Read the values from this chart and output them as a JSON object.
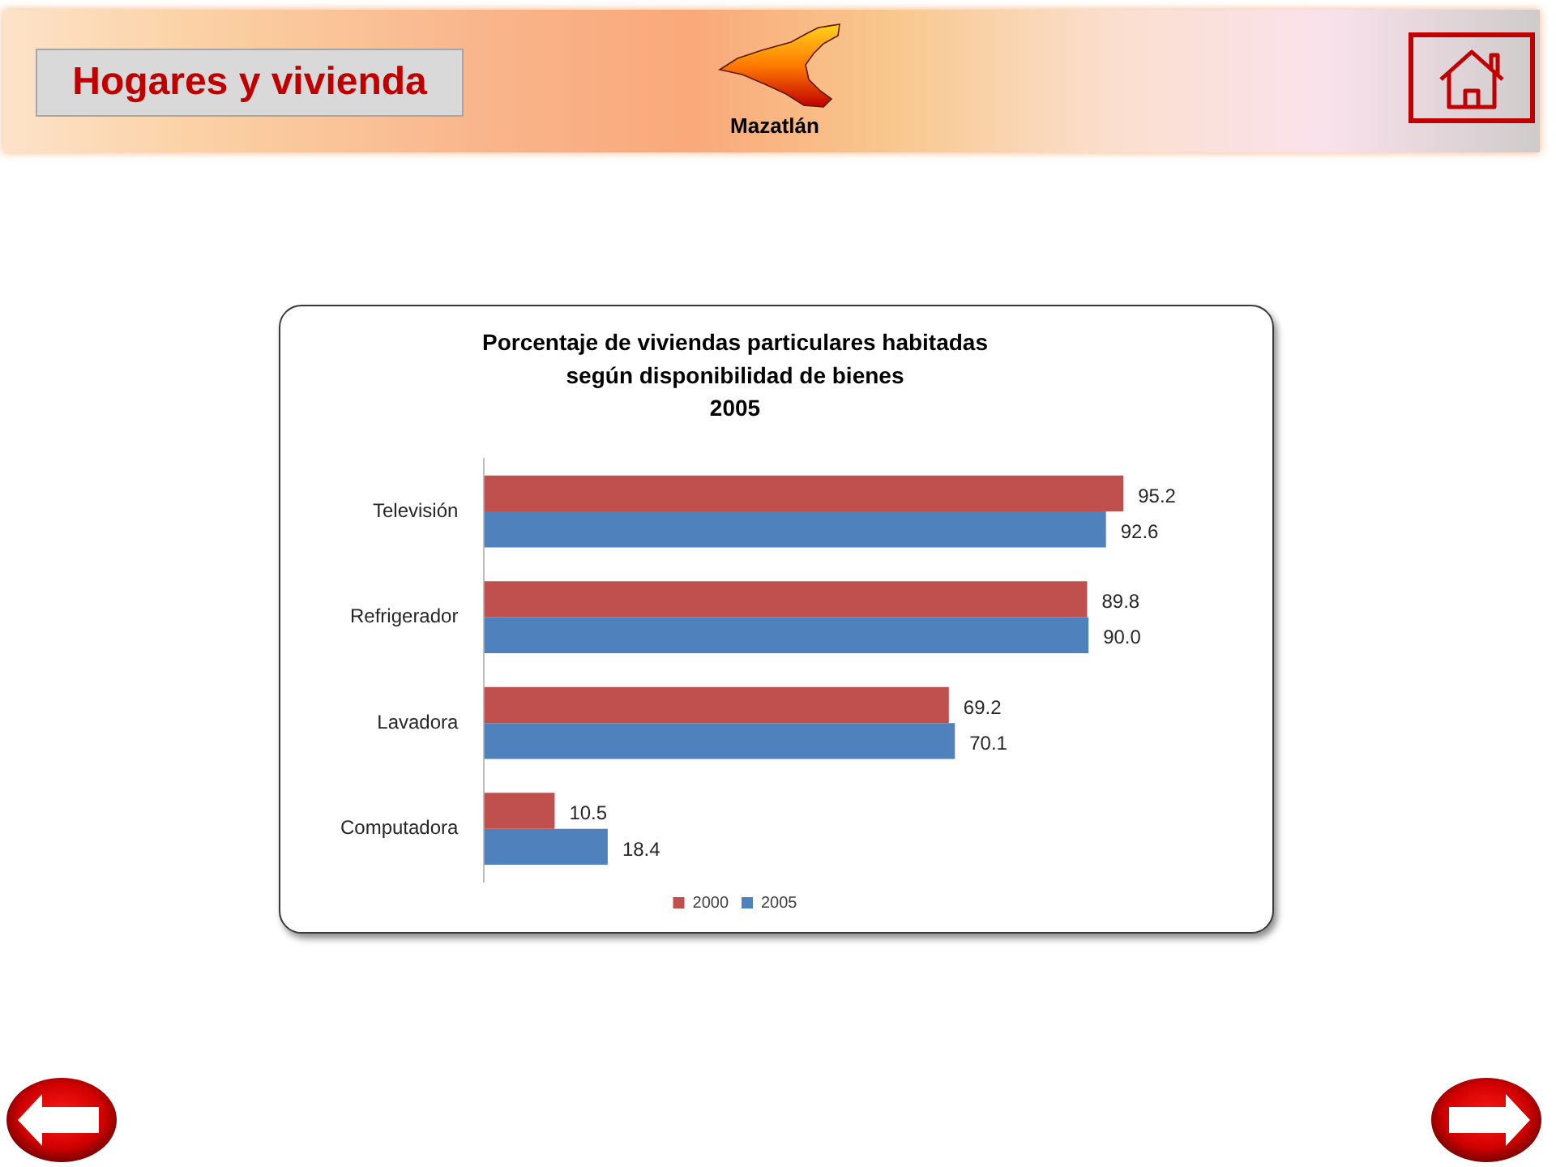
{
  "chart_data": {
    "type": "bar",
    "orientation": "horizontal",
    "title": "Porcentaje de viviendas particulares habitadas\nsegún disponibilidad de bienes\n2005",
    "categories": [
      "Televisión",
      "Refrigerador",
      "Lavadora",
      "Computadora"
    ],
    "series": [
      {
        "name": "2000",
        "color": "#c0504d",
        "values": [
          95.2,
          89.8,
          69.2,
          10.5
        ],
        "value_labels": [
          "95.2",
          "89.8",
          "69.2",
          "10.5"
        ]
      },
      {
        "name": "2005",
        "color": "#4f81bd",
        "values": [
          92.6,
          90.0,
          70.1,
          18.4
        ],
        "value_labels": [
          "92.6",
          "90.0",
          "70.1",
          "18.4"
        ]
      }
    ],
    "legend": "bottom",
    "tick_labels": "y",
    "annotations": [
      "Hogares y vivienda",
      "Mazatlán"
    ]
  }
}
